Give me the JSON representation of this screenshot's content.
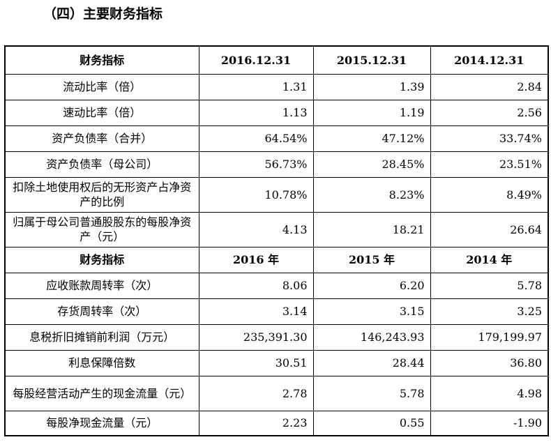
{
  "heading": "（四）主要财务指标",
  "header_1": {
    "label": "财务指标",
    "cols": [
      "2016.12.31",
      "2015.12.31",
      "2014.12.31"
    ]
  },
  "rows_1": [
    {
      "label": "流动比率（倍）",
      "values": [
        "1.31",
        "1.39",
        "2.84"
      ]
    },
    {
      "label": "速动比率（倍）",
      "values": [
        "1.13",
        "1.19",
        "2.56"
      ]
    },
    {
      "label": "资产负债率（合并）",
      "values": [
        "64.54%",
        "47.12%",
        "33.74%"
      ]
    },
    {
      "label": "资产负债率（母公司）",
      "values": [
        "56.73%",
        "28.45%",
        "23.51%"
      ]
    },
    {
      "label": "扣除土地使用权后的无形资产占净资产的比例",
      "values": [
        "10.78%",
        "8.23%",
        "8.49%"
      ]
    },
    {
      "label": "归属于母公司普通股股东的每股净资产（元）",
      "values": [
        "4.13",
        "18.21",
        "26.64"
      ]
    }
  ],
  "header_2": {
    "label": "财务指标",
    "cols": [
      "2016 年",
      "2015 年",
      "2014 年"
    ]
  },
  "rows_2": [
    {
      "label": "应收账款周转率（次）",
      "values": [
        "8.06",
        "6.20",
        "5.78"
      ]
    },
    {
      "label": "存货周转率（次）",
      "values": [
        "3.14",
        "3.15",
        "3.25"
      ]
    },
    {
      "label": "息税折旧摊销前利润（万元）",
      "values": [
        "235,391.30",
        "146,243.93",
        "179,199.97"
      ]
    },
    {
      "label": "利息保障倍数",
      "values": [
        "30.51",
        "28.44",
        "36.80"
      ]
    },
    {
      "label": "每股经营活动产生的现金流量（元）",
      "values": [
        "2.78",
        "5.78",
        "4.98"
      ]
    },
    {
      "label": "每股净现金流量（元）",
      "values": [
        "2.23",
        "0.55",
        "-1.90"
      ]
    }
  ]
}
